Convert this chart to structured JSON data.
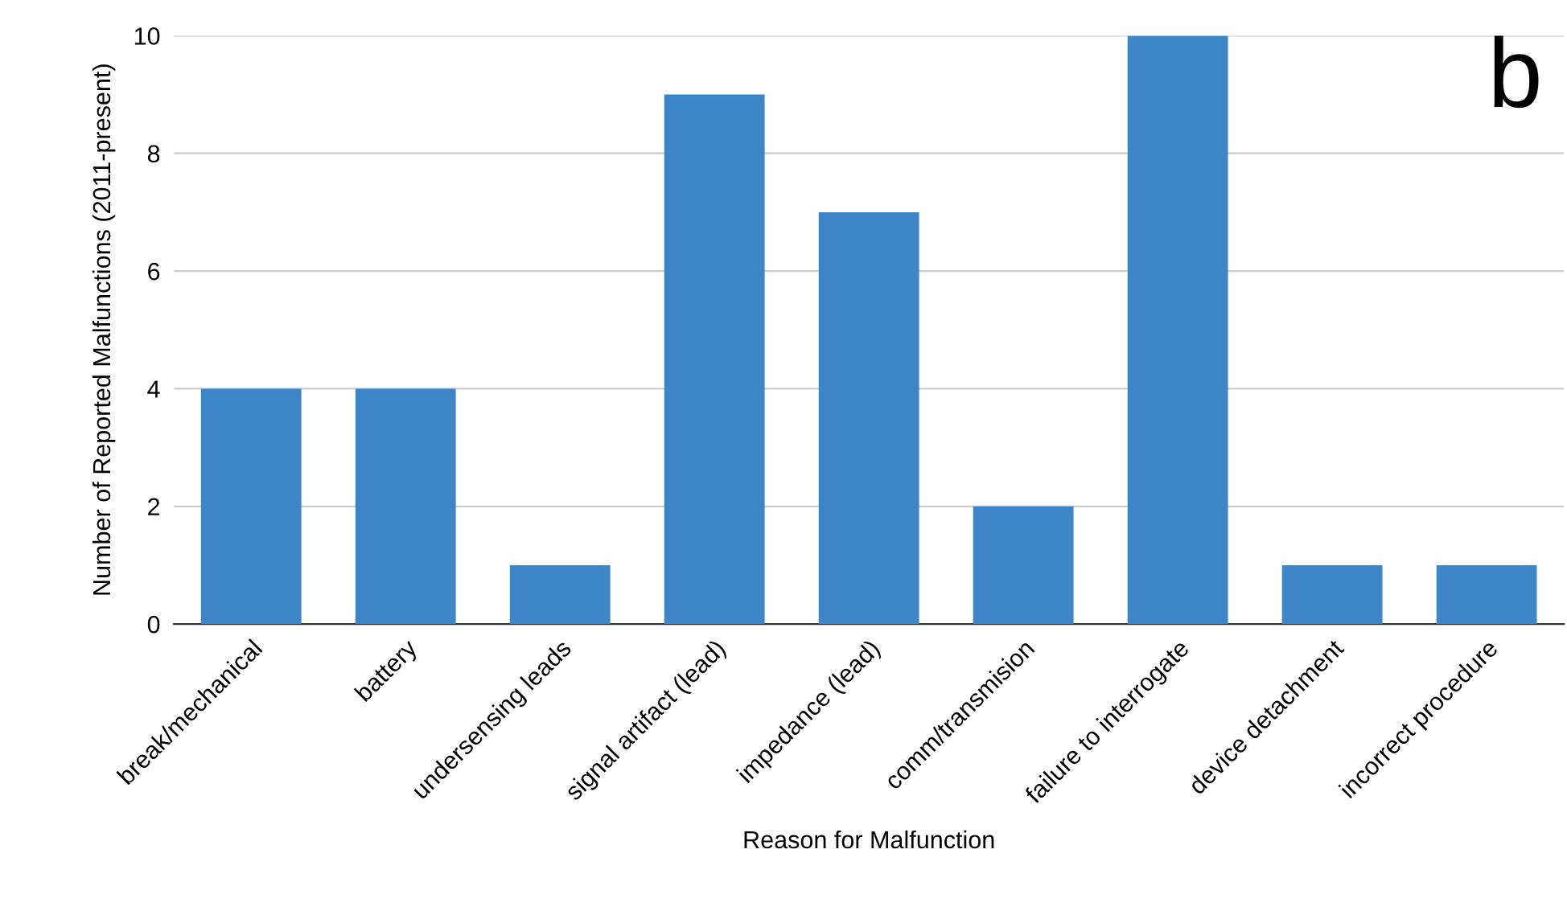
{
  "chart_data": {
    "type": "bar",
    "categories": [
      "break/mechanical",
      "battery",
      "undersensing leads",
      "signal artifact (lead)",
      "impedance (lead)",
      "comm/transmision",
      "failure to interrogate",
      "device detachment",
      "incorrect procedure"
    ],
    "values": [
      4,
      4,
      1,
      9,
      7,
      2,
      10,
      1,
      1
    ],
    "color": "#3d85c6",
    "xlabel": "Reason for Malfunction",
    "ylabel": "Number of Reported Malfunctions (2011-present)",
    "ylim": [
      0,
      10
    ],
    "yticks": [
      0,
      2,
      4,
      6,
      8,
      10
    ],
    "grid": "y",
    "annotations": [
      "b"
    ]
  }
}
